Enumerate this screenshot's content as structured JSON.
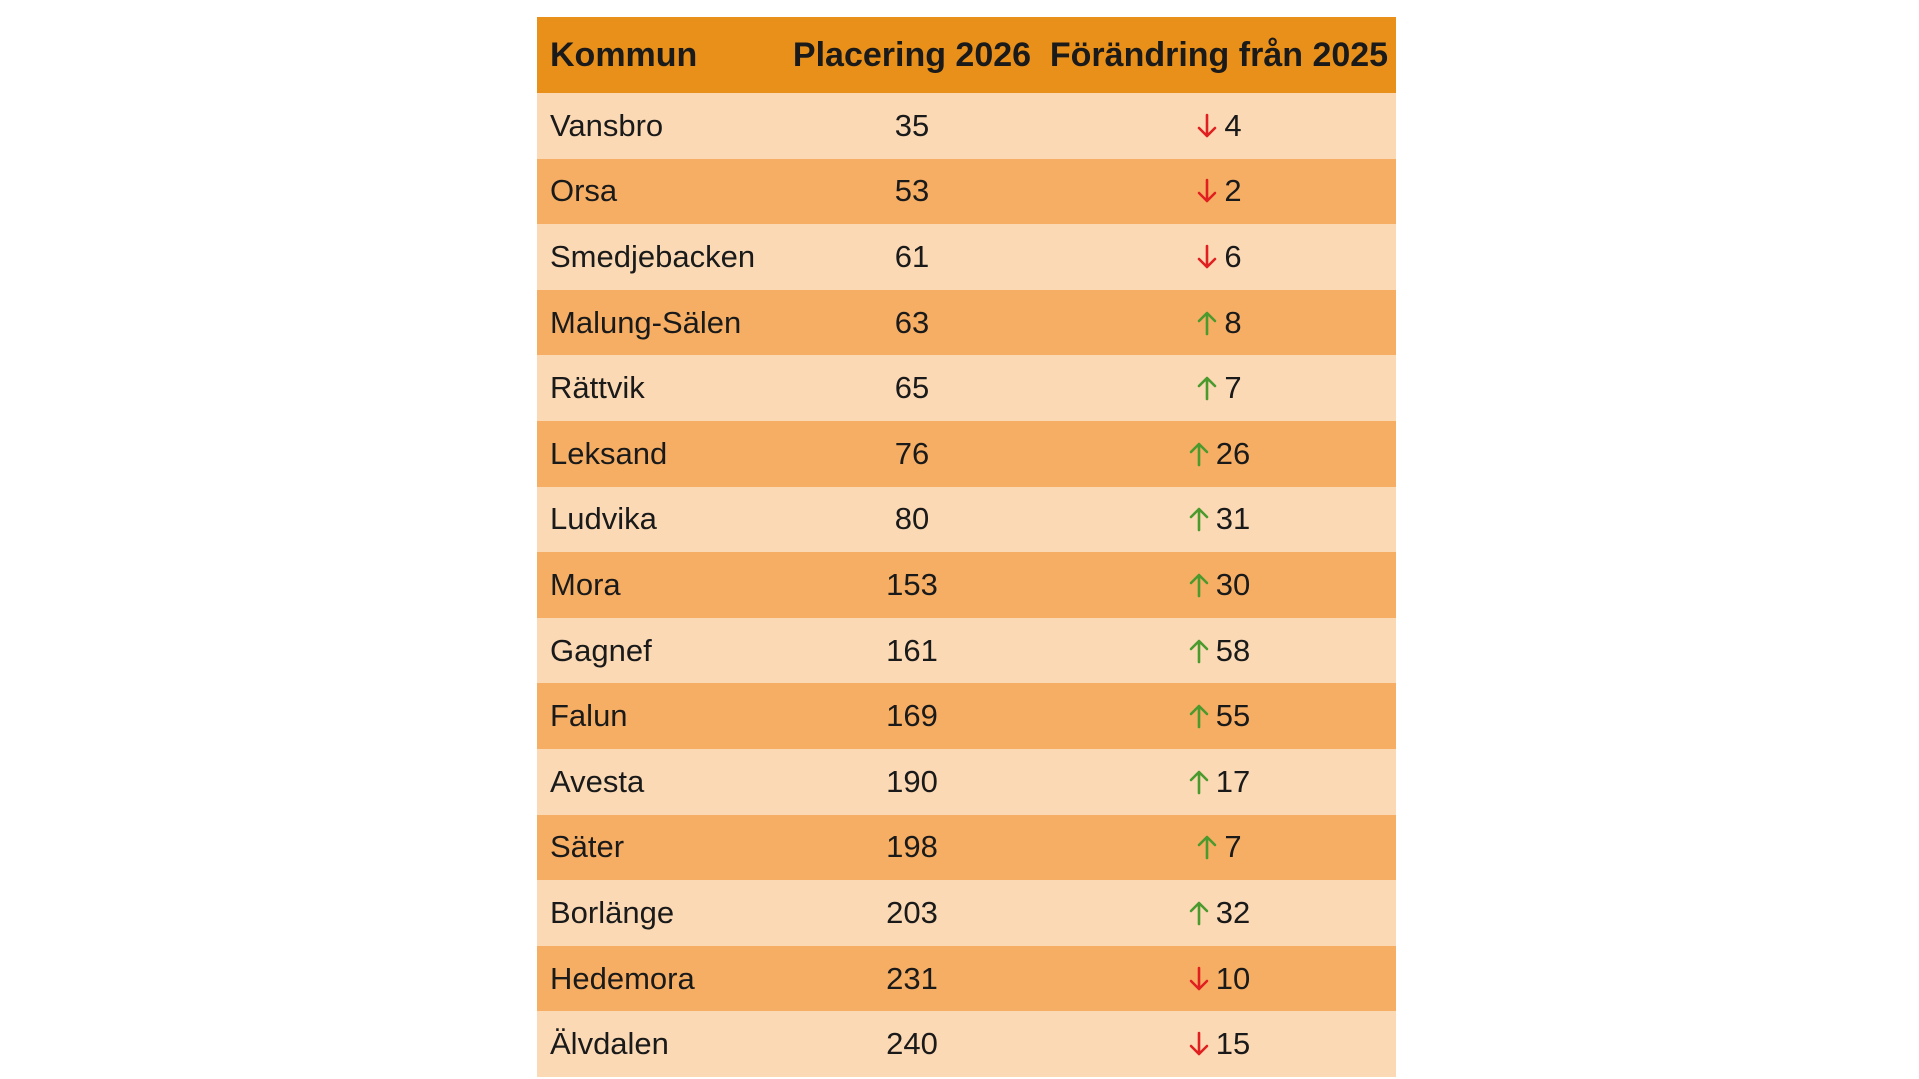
{
  "table": {
    "headers": {
      "kommun": "Kommun",
      "placering": "Placering 2026",
      "forandring": "Förändring från 2025"
    },
    "colors": {
      "header_bg": "#e8901a",
      "row_light": "#fbd9b5",
      "row_dark": "#f6ae64",
      "arrow_up": "#4a9a2e",
      "arrow_down": "#e02020"
    },
    "rows": [
      {
        "kommun": "Vansbro",
        "placering": "35",
        "direction": "down",
        "change": "4"
      },
      {
        "kommun": "Orsa",
        "placering": "53",
        "direction": "down",
        "change": "2"
      },
      {
        "kommun": "Smedjebacken",
        "placering": "61",
        "direction": "down",
        "change": "6"
      },
      {
        "kommun": "Malung-Sälen",
        "placering": "63",
        "direction": "up",
        "change": "8"
      },
      {
        "kommun": "Rättvik",
        "placering": "65",
        "direction": "up",
        "change": "7"
      },
      {
        "kommun": "Leksand",
        "placering": "76",
        "direction": "up",
        "change": "26"
      },
      {
        "kommun": "Ludvika",
        "placering": "80",
        "direction": "up",
        "change": "31"
      },
      {
        "kommun": "Mora",
        "placering": "153",
        "direction": "up",
        "change": "30"
      },
      {
        "kommun": "Gagnef",
        "placering": "161",
        "direction": "up",
        "change": "58"
      },
      {
        "kommun": "Falun",
        "placering": "169",
        "direction": "up",
        "change": "55"
      },
      {
        "kommun": "Avesta",
        "placering": "190",
        "direction": "up",
        "change": "17"
      },
      {
        "kommun": "Säter",
        "placering": "198",
        "direction": "up",
        "change": "7"
      },
      {
        "kommun": "Borlänge",
        "placering": "203",
        "direction": "up",
        "change": "32"
      },
      {
        "kommun": "Hedemora",
        "placering": "231",
        "direction": "down",
        "change": "10"
      },
      {
        "kommun": "Älvdalen",
        "placering": "240",
        "direction": "down",
        "change": "15"
      }
    ]
  }
}
